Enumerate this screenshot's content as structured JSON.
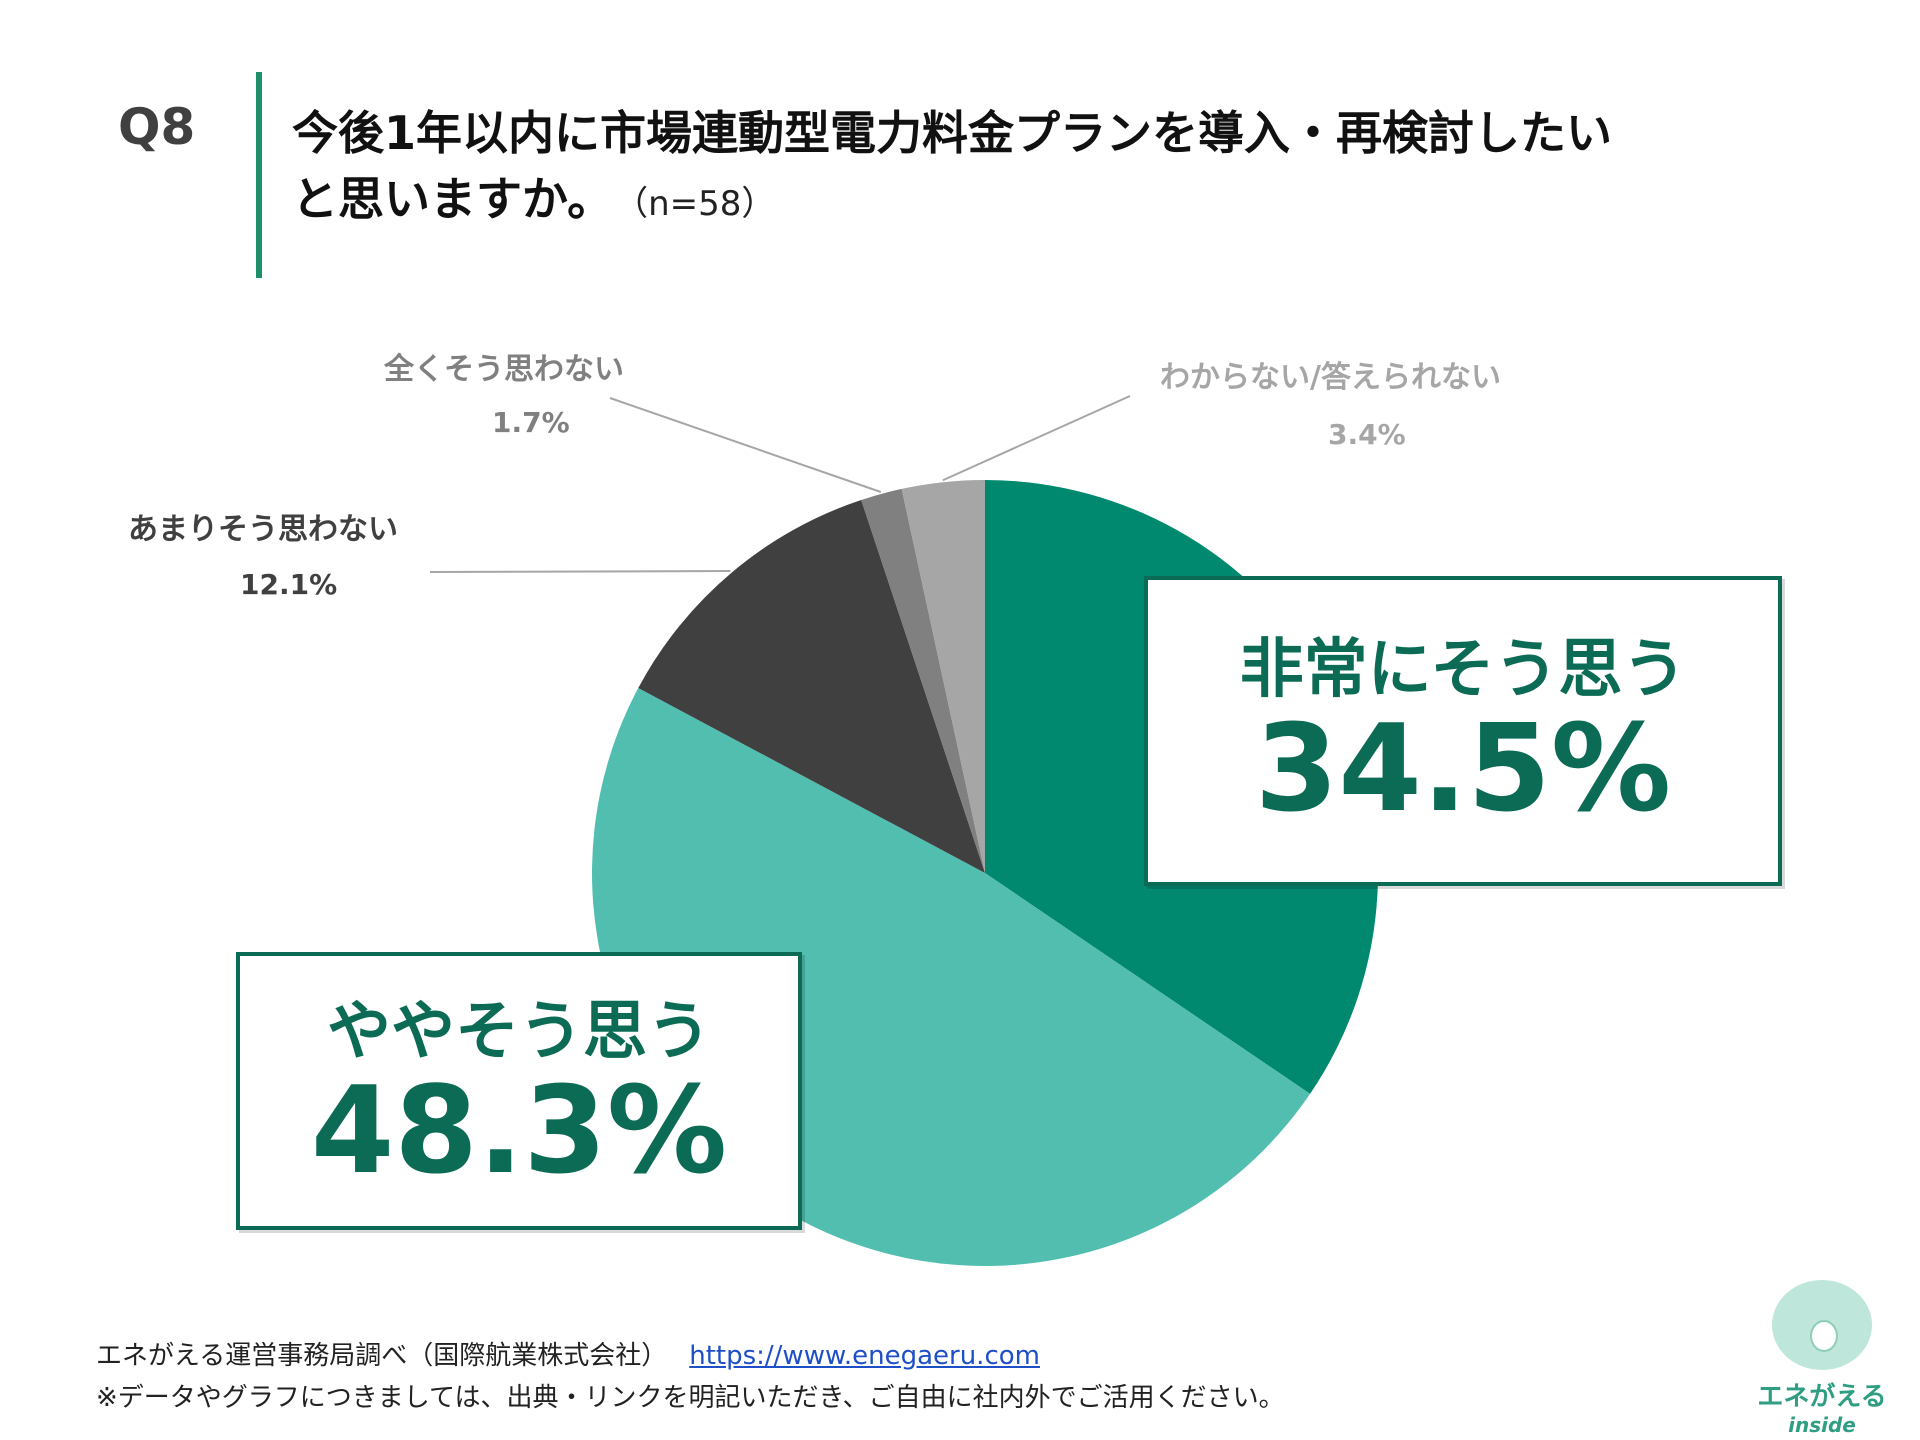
{
  "question": {
    "number": "Q8",
    "title_line1": "今後1年以内に市場連動型電力料金プランを導入・再検討したい",
    "title_line2": "と思いますか。",
    "sample": "（n=58）"
  },
  "colors": {
    "accent": "#1f8e6a",
    "callout": "#0c6b55"
  },
  "chart_data": {
    "type": "pie",
    "title": "今後1年以内に市場連動型電力料金プランを導入・再検討したいと思いますか。",
    "start": "12 o'clock",
    "direction": "clockwise",
    "series": [
      {
        "name": "非常にそう思う",
        "value": 34.5,
        "label": "34.5%",
        "color": "#00896f"
      },
      {
        "name": "ややそう思う",
        "value": 48.3,
        "label": "48.3%",
        "color": "#52beb0"
      },
      {
        "name": "あまりそう思わない",
        "value": 12.1,
        "label": "12.1%",
        "color": "#404040"
      },
      {
        "name": "全くそう思わない",
        "value": 1.7,
        "label": "1.7%",
        "color": "#808080"
      },
      {
        "name": "わからない/答えられない",
        "value": 3.4,
        "label": "3.4%",
        "color": "#a6a6a6"
      }
    ]
  },
  "footer": {
    "source": "エネがえる運営事務局調べ（国際航業株式会社）",
    "url": "https://www.enegaeru.com",
    "note": "※データやグラフにつきましては、出典・リンクを明記いただき、ご自由に社内外でご活用ください。"
  },
  "logo": {
    "brand": "エネがえる",
    "sub": "inside"
  }
}
